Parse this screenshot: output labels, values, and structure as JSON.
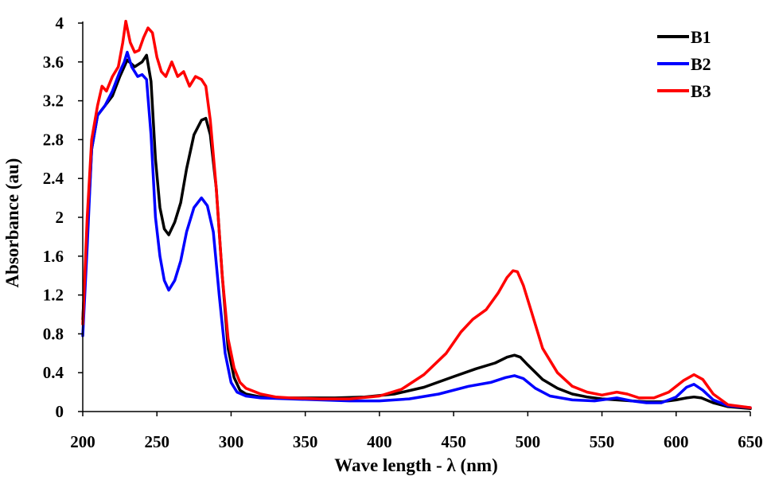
{
  "chart_data": {
    "type": "line",
    "xlabel": "Wave length - λ (nm)",
    "ylabel": "Absorbance (au)",
    "xlim": [
      200,
      650
    ],
    "ylim": [
      0,
      4
    ],
    "x_ticks": [
      200,
      250,
      300,
      350,
      400,
      450,
      500,
      550,
      600,
      650
    ],
    "x_tick_labels": [
      "200",
      "250",
      "300",
      "350",
      "400",
      "450",
      "500",
      "550",
      "600",
      "650"
    ],
    "y_ticks": [
      0,
      0.4,
      0.8,
      1.2,
      1.6,
      2,
      2.4,
      2.8,
      3.2,
      3.6,
      4
    ],
    "y_tick_labels": [
      "0",
      "0.4",
      "0.8",
      "1.2",
      "1.6",
      "2",
      "2.4",
      "2.8",
      "3.2",
      "3.6",
      "4"
    ],
    "grid": false,
    "legend_position": "top-right",
    "series": [
      {
        "name": "B1",
        "color": "#000000",
        "points": [
          [
            200,
            0.95
          ],
          [
            203,
            1.8
          ],
          [
            206,
            2.7
          ],
          [
            210,
            3.05
          ],
          [
            215,
            3.15
          ],
          [
            220,
            3.25
          ],
          [
            225,
            3.45
          ],
          [
            230,
            3.62
          ],
          [
            235,
            3.55
          ],
          [
            240,
            3.6
          ],
          [
            243,
            3.67
          ],
          [
            246,
            3.4
          ],
          [
            249,
            2.6
          ],
          [
            252,
            2.1
          ],
          [
            255,
            1.88
          ],
          [
            258,
            1.82
          ],
          [
            262,
            1.95
          ],
          [
            266,
            2.15
          ],
          [
            270,
            2.5
          ],
          [
            275,
            2.85
          ],
          [
            280,
            3.0
          ],
          [
            283,
            3.02
          ],
          [
            286,
            2.85
          ],
          [
            290,
            2.3
          ],
          [
            294,
            1.4
          ],
          [
            298,
            0.65
          ],
          [
            302,
            0.35
          ],
          [
            306,
            0.22
          ],
          [
            310,
            0.18
          ],
          [
            320,
            0.15
          ],
          [
            330,
            0.14
          ],
          [
            350,
            0.14
          ],
          [
            370,
            0.14
          ],
          [
            390,
            0.15
          ],
          [
            410,
            0.18
          ],
          [
            430,
            0.25
          ],
          [
            450,
            0.36
          ],
          [
            465,
            0.44
          ],
          [
            478,
            0.5
          ],
          [
            486,
            0.56
          ],
          [
            491,
            0.58
          ],
          [
            495,
            0.56
          ],
          [
            500,
            0.48
          ],
          [
            510,
            0.33
          ],
          [
            520,
            0.24
          ],
          [
            530,
            0.18
          ],
          [
            540,
            0.15
          ],
          [
            550,
            0.13
          ],
          [
            560,
            0.12
          ],
          [
            570,
            0.11
          ],
          [
            580,
            0.1
          ],
          [
            590,
            0.1
          ],
          [
            600,
            0.12
          ],
          [
            607,
            0.14
          ],
          [
            612,
            0.15
          ],
          [
            617,
            0.14
          ],
          [
            625,
            0.09
          ],
          [
            635,
            0.05
          ],
          [
            650,
            0.03
          ]
        ]
      },
      {
        "name": "B2",
        "color": "#0000ff",
        "points": [
          [
            200,
            0.78
          ],
          [
            203,
            1.7
          ],
          [
            206,
            2.7
          ],
          [
            210,
            3.05
          ],
          [
            215,
            3.15
          ],
          [
            220,
            3.3
          ],
          [
            225,
            3.5
          ],
          [
            228,
            3.6
          ],
          [
            230,
            3.7
          ],
          [
            233,
            3.55
          ],
          [
            237,
            3.45
          ],
          [
            240,
            3.47
          ],
          [
            243,
            3.42
          ],
          [
            246,
            2.85
          ],
          [
            249,
            2.0
          ],
          [
            252,
            1.6
          ],
          [
            255,
            1.35
          ],
          [
            258,
            1.25
          ],
          [
            262,
            1.35
          ],
          [
            266,
            1.55
          ],
          [
            270,
            1.85
          ],
          [
            275,
            2.1
          ],
          [
            280,
            2.2
          ],
          [
            284,
            2.12
          ],
          [
            288,
            1.85
          ],
          [
            292,
            1.2
          ],
          [
            296,
            0.6
          ],
          [
            300,
            0.3
          ],
          [
            304,
            0.2
          ],
          [
            310,
            0.16
          ],
          [
            320,
            0.14
          ],
          [
            340,
            0.13
          ],
          [
            360,
            0.12
          ],
          [
            380,
            0.11
          ],
          [
            400,
            0.11
          ],
          [
            420,
            0.13
          ],
          [
            440,
            0.18
          ],
          [
            460,
            0.26
          ],
          [
            475,
            0.3
          ],
          [
            485,
            0.35
          ],
          [
            491,
            0.37
          ],
          [
            497,
            0.34
          ],
          [
            505,
            0.24
          ],
          [
            515,
            0.16
          ],
          [
            530,
            0.12
          ],
          [
            545,
            0.11
          ],
          [
            560,
            0.14
          ],
          [
            570,
            0.11
          ],
          [
            580,
            0.09
          ],
          [
            590,
            0.09
          ],
          [
            600,
            0.15
          ],
          [
            607,
            0.25
          ],
          [
            612,
            0.28
          ],
          [
            618,
            0.22
          ],
          [
            625,
            0.12
          ],
          [
            635,
            0.06
          ],
          [
            650,
            0.04
          ]
        ]
      },
      {
        "name": "B3",
        "color": "#ff0000",
        "points": [
          [
            200,
            0.9
          ],
          [
            203,
            2.0
          ],
          [
            206,
            2.8
          ],
          [
            210,
            3.15
          ],
          [
            213,
            3.35
          ],
          [
            216,
            3.3
          ],
          [
            220,
            3.45
          ],
          [
            224,
            3.55
          ],
          [
            227,
            3.8
          ],
          [
            229,
            4.02
          ],
          [
            232,
            3.8
          ],
          [
            235,
            3.7
          ],
          [
            238,
            3.72
          ],
          [
            241,
            3.85
          ],
          [
            244,
            3.95
          ],
          [
            247,
            3.9
          ],
          [
            250,
            3.65
          ],
          [
            253,
            3.5
          ],
          [
            256,
            3.45
          ],
          [
            260,
            3.6
          ],
          [
            264,
            3.45
          ],
          [
            268,
            3.5
          ],
          [
            272,
            3.35
          ],
          [
            276,
            3.45
          ],
          [
            280,
            3.42
          ],
          [
            283,
            3.35
          ],
          [
            286,
            3.0
          ],
          [
            290,
            2.3
          ],
          [
            294,
            1.4
          ],
          [
            298,
            0.75
          ],
          [
            302,
            0.45
          ],
          [
            306,
            0.3
          ],
          [
            310,
            0.24
          ],
          [
            320,
            0.18
          ],
          [
            330,
            0.15
          ],
          [
            340,
            0.14
          ],
          [
            360,
            0.13
          ],
          [
            380,
            0.13
          ],
          [
            400,
            0.16
          ],
          [
            415,
            0.23
          ],
          [
            430,
            0.38
          ],
          [
            445,
            0.6
          ],
          [
            455,
            0.82
          ],
          [
            463,
            0.95
          ],
          [
            472,
            1.05
          ],
          [
            480,
            1.22
          ],
          [
            486,
            1.38
          ],
          [
            490,
            1.45
          ],
          [
            493,
            1.44
          ],
          [
            497,
            1.3
          ],
          [
            502,
            1.05
          ],
          [
            510,
            0.65
          ],
          [
            520,
            0.4
          ],
          [
            530,
            0.26
          ],
          [
            540,
            0.2
          ],
          [
            550,
            0.17
          ],
          [
            560,
            0.2
          ],
          [
            567,
            0.18
          ],
          [
            575,
            0.14
          ],
          [
            585,
            0.14
          ],
          [
            595,
            0.2
          ],
          [
            605,
            0.32
          ],
          [
            612,
            0.38
          ],
          [
            618,
            0.33
          ],
          [
            625,
            0.18
          ],
          [
            635,
            0.07
          ],
          [
            650,
            0.04
          ]
        ]
      }
    ]
  }
}
